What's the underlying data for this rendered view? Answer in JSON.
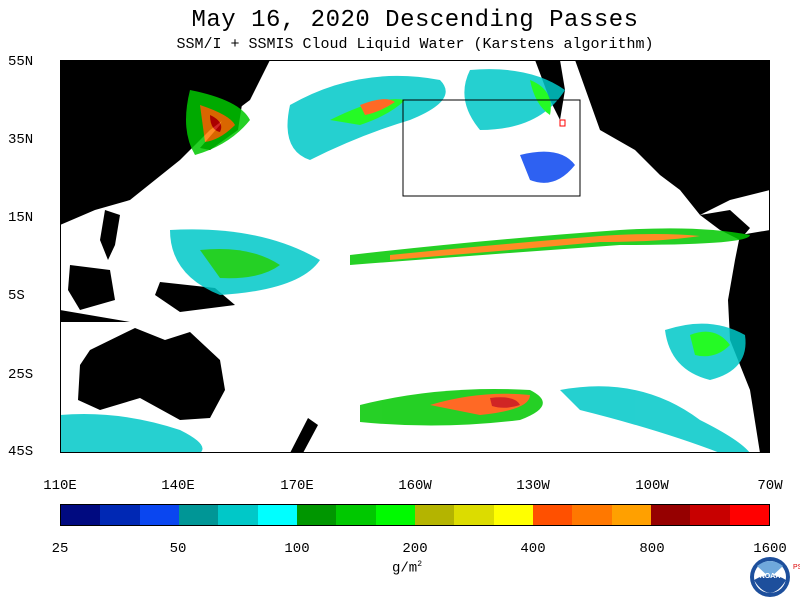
{
  "title": "May 16, 2020  Descending Passes",
  "subtitle": "SSM/I + SSMIS Cloud Liquid Water (Karstens algorithm)",
  "lat_labels": [
    "55N",
    "35N",
    "15N",
    "5S",
    "25S",
    "45S"
  ],
  "lon_labels": [
    "110E",
    "140E",
    "170E",
    "160W",
    "130W",
    "100W",
    "70W"
  ],
  "colorbar": {
    "colors": [
      "#000a80",
      "#0028b4",
      "#0a46f0",
      "#009696",
      "#00c8c8",
      "#00ffff",
      "#009600",
      "#00c800",
      "#00fa00",
      "#b4b400",
      "#dcdc00",
      "#ffff00",
      "#ff5000",
      "#ff7800",
      "#ffa000",
      "#960000",
      "#c80000",
      "#ff0000"
    ],
    "tick_labels": [
      "25",
      "50",
      "100",
      "200",
      "400",
      "800",
      "1600"
    ],
    "units": "g/m",
    "units_exp": "2"
  },
  "logo": {
    "org": "NOAA",
    "lab_letters": "PSL"
  },
  "map_colors": {
    "ocean": "#ffffff",
    "land": "#000000",
    "frame": "#000000"
  },
  "icons": [
    "noaa-logo-icon"
  ]
}
